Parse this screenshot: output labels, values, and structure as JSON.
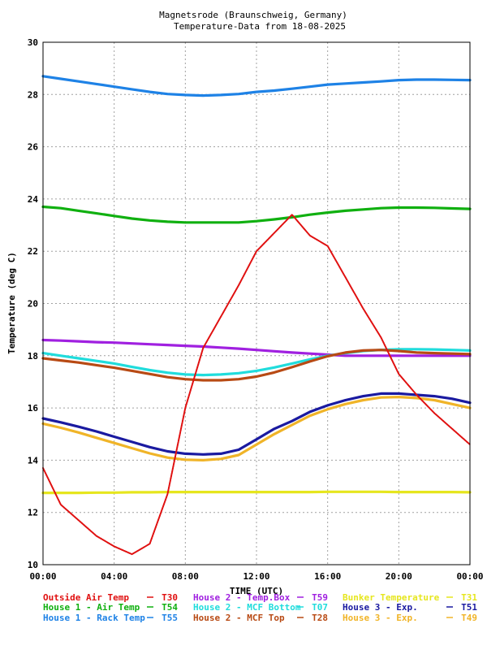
{
  "chart_data": {
    "type": "line",
    "title": "Magnetsrode (Braunschweig, Germany)",
    "subtitle": "Temperature-Data from 18-08-2025",
    "xlabel": "TIME (UTC)",
    "ylabel": "Temperature (deg C)",
    "xlim": [
      0,
      24
    ],
    "ylim": [
      10,
      30
    ],
    "x_ticks": [
      "00:00",
      "04:00",
      "08:00",
      "12:00",
      "16:00",
      "20:00",
      "00:00"
    ],
    "y_ticks": [
      "10",
      "12",
      "14",
      "16",
      "18",
      "20",
      "22",
      "24",
      "26",
      "28",
      "30"
    ],
    "grid": true,
    "legend_position": "bottom",
    "x": [
      0,
      1,
      2,
      3,
      4,
      5,
      6,
      7,
      8,
      9,
      10,
      11,
      12,
      13,
      14,
      15,
      16,
      17,
      18,
      19,
      20,
      21,
      22,
      23,
      24
    ],
    "series": [
      {
        "name": "Outside Air Temp",
        "code": "T30",
        "color": "#e01010",
        "values": [
          13.7,
          12.3,
          11.7,
          11.1,
          10.7,
          10.4,
          10.8,
          12.7,
          16.0,
          18.3,
          19.5,
          20.7,
          22.0,
          22.7,
          23.4,
          22.6,
          22.2,
          21.0,
          19.8,
          18.7,
          17.3,
          16.5,
          15.8,
          15.2,
          14.6
        ]
      },
      {
        "name": "House 1 - Air  Temp",
        "code": "T54",
        "color": "#10b010",
        "values": [
          23.7,
          23.65,
          23.55,
          23.45,
          23.35,
          23.25,
          23.18,
          23.13,
          23.1,
          23.1,
          23.1,
          23.1,
          23.15,
          23.22,
          23.3,
          23.4,
          23.48,
          23.55,
          23.6,
          23.65,
          23.67,
          23.67,
          23.66,
          23.64,
          23.62
        ]
      },
      {
        "name": "House 1 - Rack Temp",
        "code": "T55",
        "color": "#1e82e6",
        "values": [
          28.7,
          28.6,
          28.5,
          28.4,
          28.3,
          28.2,
          28.1,
          28.02,
          27.98,
          27.96,
          27.98,
          28.02,
          28.1,
          28.15,
          28.22,
          28.3,
          28.38,
          28.42,
          28.46,
          28.5,
          28.55,
          28.57,
          28.57,
          28.56,
          28.55
        ]
      },
      {
        "name": "House 2 - Temp.Box",
        "code": "T59",
        "color": "#a020e0",
        "values": [
          18.6,
          18.58,
          18.55,
          18.52,
          18.5,
          18.47,
          18.44,
          18.41,
          18.38,
          18.35,
          18.31,
          18.27,
          18.22,
          18.17,
          18.12,
          18.08,
          18.04,
          18.0,
          18.0,
          18.0,
          18.0,
          18.0,
          18.0,
          18.0,
          18.0
        ]
      },
      {
        "name": "House 2 - MCF Bottom",
        "code": "T07",
        "color": "#20dcdc",
        "values": [
          18.1,
          18.0,
          17.9,
          17.8,
          17.7,
          17.57,
          17.45,
          17.35,
          17.28,
          17.26,
          17.28,
          17.33,
          17.42,
          17.55,
          17.7,
          17.86,
          18.0,
          18.1,
          18.18,
          18.22,
          18.25,
          18.25,
          18.24,
          18.22,
          18.2
        ]
      },
      {
        "name": "House 2 - MCF Top",
        "code": "T28",
        "color": "#b84a14",
        "values": [
          17.9,
          17.82,
          17.74,
          17.64,
          17.54,
          17.42,
          17.3,
          17.18,
          17.1,
          17.06,
          17.06,
          17.1,
          17.2,
          17.36,
          17.56,
          17.78,
          17.98,
          18.12,
          18.2,
          18.22,
          18.18,
          18.12,
          18.1,
          18.08,
          18.06
        ]
      },
      {
        "name": "Bunker Temperature",
        "code": "T31",
        "color": "#e6e61e",
        "values": [
          12.75,
          12.75,
          12.75,
          12.76,
          12.76,
          12.77,
          12.77,
          12.78,
          12.78,
          12.78,
          12.78,
          12.78,
          12.78,
          12.78,
          12.78,
          12.78,
          12.79,
          12.79,
          12.79,
          12.79,
          12.78,
          12.78,
          12.78,
          12.78,
          12.77
        ]
      },
      {
        "name": "House 3 - Exp.",
        "code": "T51",
        "color": "#1a1aa0",
        "values": [
          15.6,
          15.45,
          15.28,
          15.1,
          14.9,
          14.7,
          14.5,
          14.34,
          14.25,
          14.22,
          14.25,
          14.4,
          14.8,
          15.2,
          15.5,
          15.85,
          16.1,
          16.3,
          16.45,
          16.55,
          16.55,
          16.5,
          16.45,
          16.35,
          16.2
        ]
      },
      {
        "name": "House 3 - Exp.",
        "code": "T49",
        "color": "#f0b428",
        "values": [
          15.4,
          15.24,
          15.06,
          14.86,
          14.66,
          14.46,
          14.26,
          14.1,
          14.02,
          14.0,
          14.05,
          14.2,
          14.6,
          15.0,
          15.35,
          15.7,
          15.95,
          16.15,
          16.3,
          16.4,
          16.42,
          16.38,
          16.3,
          16.15,
          16.0
        ]
      }
    ]
  }
}
